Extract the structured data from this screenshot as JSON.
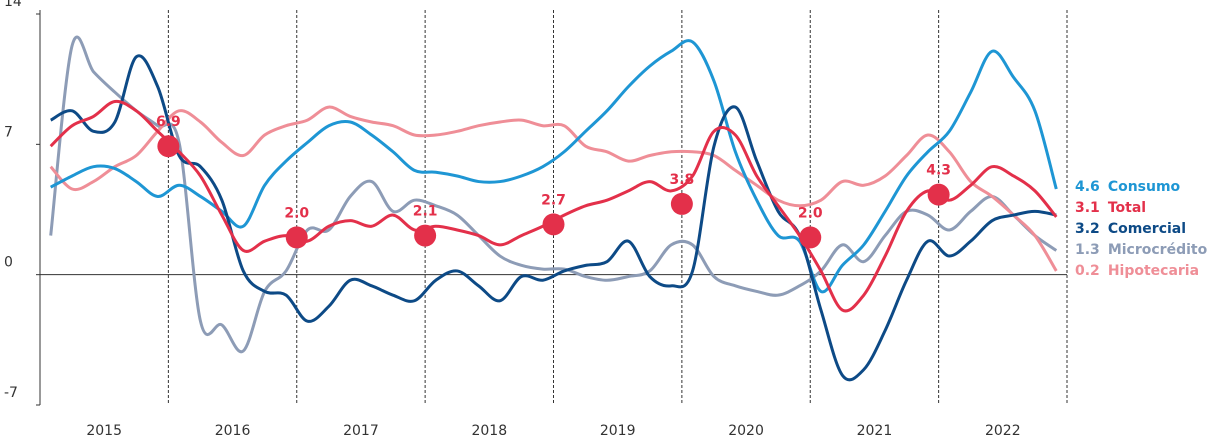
{
  "chart_data": {
    "type": "line",
    "categories": [
      "2015",
      null,
      null,
      null,
      null,
      null,
      "2016",
      null,
      null,
      null,
      null,
      null,
      "2017",
      null,
      null,
      null,
      null,
      null,
      "2018",
      null,
      null,
      null,
      null,
      null,
      "2019",
      null,
      null,
      null,
      null,
      null,
      "2020",
      null,
      null,
      null,
      null,
      null,
      "2021",
      null,
      null,
      null,
      null,
      null,
      "2022",
      null,
      null,
      null,
      null,
      null
    ],
    "ylim": [
      -7,
      14
    ],
    "yticks": [
      -7,
      0,
      7,
      14
    ],
    "series": [
      {
        "name": "Consumo",
        "color": "#1e96d4",
        "values": [
          4.7,
          5.3,
          5.8,
          5.7,
          5.0,
          4.2,
          4.8,
          4.2,
          3.4,
          2.6,
          4.8,
          6.1,
          7.1,
          8.0,
          8.2,
          7.5,
          6.6,
          5.6,
          5.5,
          5.3,
          5.0,
          5.0,
          5.3,
          5.8,
          6.6,
          7.7,
          8.8,
          10.1,
          11.2,
          12.0,
          12.5,
          10.4,
          6.6,
          4.0,
          2.1,
          1.8,
          -0.9,
          0.5,
          1.6,
          3.4,
          5.3,
          6.6,
          7.7,
          9.8,
          12.0,
          10.6,
          8.8,
          4.6
        ]
      },
      {
        "name": "Total",
        "color": "#e3304a",
        "values": [
          6.9,
          8.0,
          8.5,
          9.3,
          8.8,
          7.7,
          6.6,
          5.3,
          3.2,
          1.3,
          1.8,
          2.1,
          1.8,
          2.6,
          2.9,
          2.6,
          3.2,
          2.4,
          2.6,
          2.4,
          2.1,
          1.6,
          2.1,
          2.6,
          3.2,
          3.7,
          4.0,
          4.5,
          5.0,
          4.5,
          5.3,
          7.7,
          7.5,
          5.3,
          3.7,
          2.1,
          0.2,
          -1.9,
          -1.1,
          1.0,
          3.4,
          4.5,
          4.0,
          4.8,
          5.8,
          5.3,
          4.5,
          3.1
        ]
      },
      {
        "name": "Comercial",
        "color": "#0d4a86",
        "values": [
          8.3,
          8.8,
          7.7,
          8.2,
          11.7,
          10.1,
          6.4,
          5.8,
          4.0,
          0.2,
          -0.9,
          -1.1,
          -2.5,
          -1.7,
          -0.3,
          -0.6,
          -1.1,
          -1.4,
          -0.3,
          0.2,
          -0.6,
          -1.4,
          -0.1,
          -0.3,
          0.2,
          0.5,
          0.7,
          1.8,
          -0.1,
          -0.6,
          0.2,
          6.9,
          9.0,
          6.1,
          3.4,
          2.1,
          -1.9,
          -5.4,
          -5.1,
          -3.0,
          -0.3,
          1.8,
          1.0,
          1.8,
          2.9,
          3.2,
          3.4,
          3.2
        ]
      },
      {
        "name": "Microcrédito",
        "color": "#8d9cb6",
        "values": [
          2.1,
          12.3,
          10.9,
          9.8,
          8.8,
          8.0,
          7.1,
          -2.5,
          -2.7,
          -4.1,
          -0.9,
          0.2,
          2.4,
          2.4,
          4.2,
          5.0,
          3.4,
          4.0,
          3.7,
          3.2,
          2.1,
          1.0,
          0.5,
          0.3,
          0.3,
          -0.1,
          -0.3,
          -0.1,
          0.2,
          1.6,
          1.6,
          -0.1,
          -0.6,
          -0.9,
          -1.1,
          -0.6,
          0.2,
          1.6,
          0.7,
          2.1,
          3.4,
          3.2,
          2.4,
          3.4,
          4.2,
          3.2,
          2.1,
          1.3
        ]
      },
      {
        "name": "Hipotecaria",
        "color": "#ef8e97",
        "values": [
          5.8,
          4.6,
          5.0,
          5.8,
          6.4,
          7.7,
          8.8,
          8.2,
          7.1,
          6.4,
          7.5,
          8.0,
          8.3,
          9.0,
          8.5,
          8.2,
          8.0,
          7.5,
          7.5,
          7.7,
          8.0,
          8.2,
          8.3,
          8.0,
          8.0,
          6.9,
          6.6,
          6.1,
          6.4,
          6.6,
          6.6,
          6.4,
          5.6,
          4.8,
          4.0,
          3.7,
          4.0,
          5.0,
          4.8,
          5.3,
          6.4,
          7.5,
          6.6,
          5.0,
          4.2,
          3.2,
          2.1,
          0.2
        ]
      }
    ],
    "year_end": {
      "color": "#e3304a",
      "values": [
        6.9,
        2,
        2.1,
        2.7,
        3.8,
        2,
        4.3
      ],
      "value_labels": [
        "6.9",
        "2.0",
        "2.1",
        "2.7",
        "3.8",
        "2.0",
        "4.3"
      ]
    }
  }
}
